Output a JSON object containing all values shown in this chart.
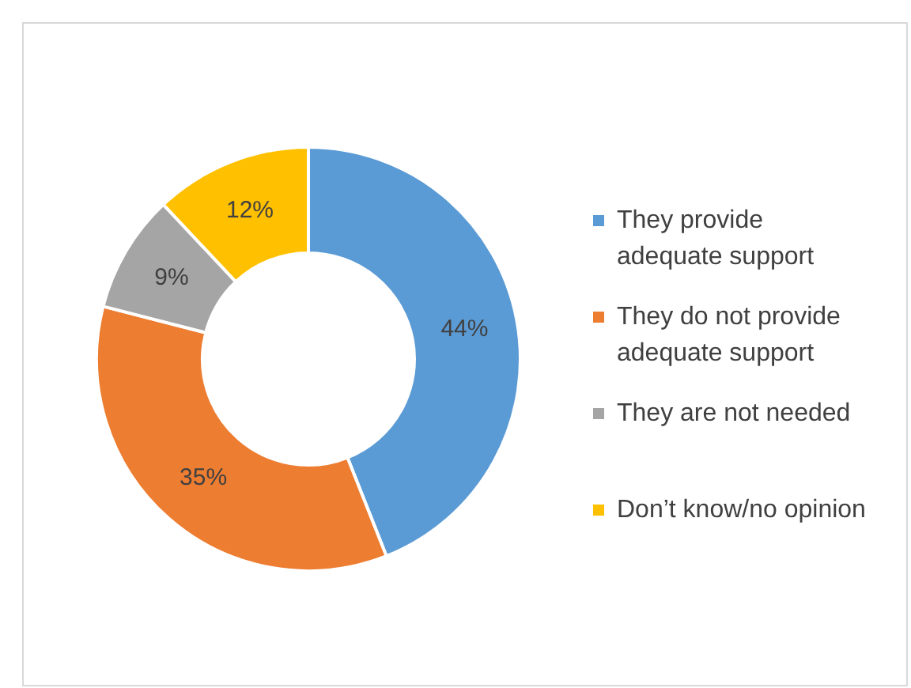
{
  "chart_data": {
    "type": "donut",
    "categories": [
      "They provide adequate support",
      "They do not provide adequate support",
      "They are not needed",
      "Don’t know/no opinion"
    ],
    "values": [
      44,
      35,
      9,
      12
    ],
    "colors": [
      "#5b9bd5",
      "#ed7d31",
      "#a5a5a5",
      "#ffc000"
    ],
    "value_labels": [
      "44%",
      "35%",
      "9%",
      "12%"
    ],
    "legend": "right"
  }
}
